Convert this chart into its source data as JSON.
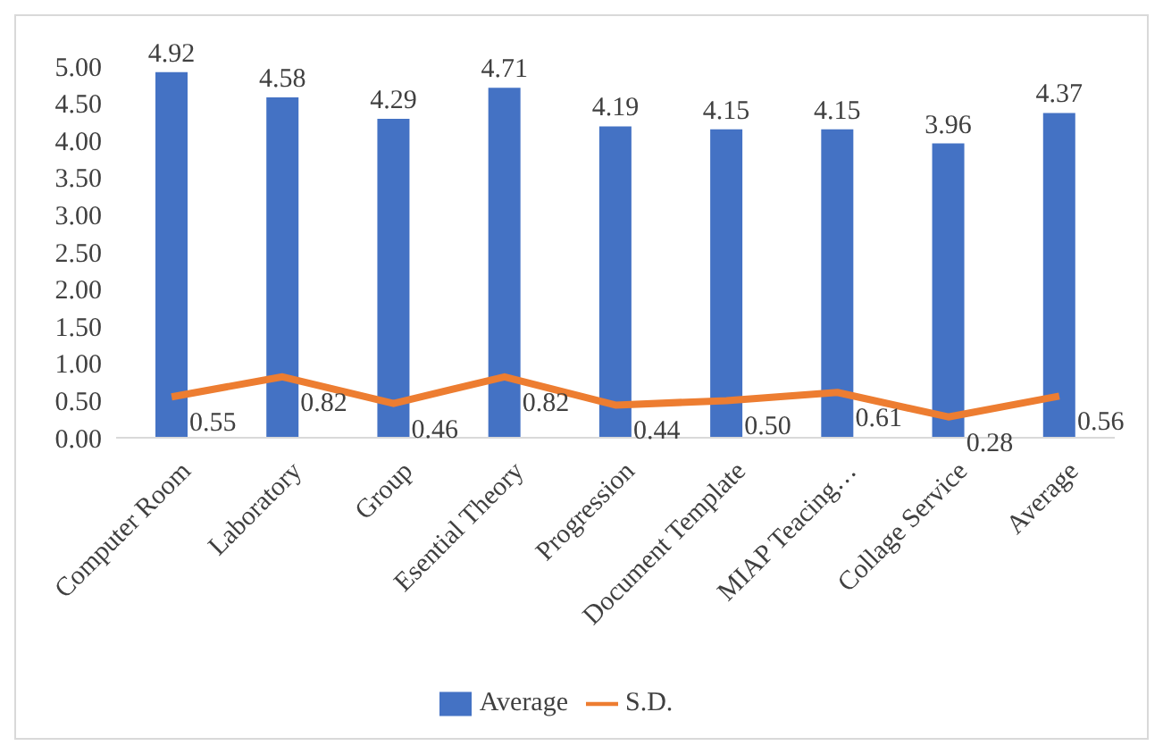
{
  "chart_data": {
    "type": "bar",
    "categories": [
      "Computer Room",
      "Laboratory",
      "Group",
      "Esential Theory",
      "Progression",
      "Document Template",
      "MIAP Teacing…",
      "Collage Service",
      "Average"
    ],
    "series": [
      {
        "name": "Average",
        "color": "#4472c4",
        "values": [
          4.92,
          4.58,
          4.29,
          4.71,
          4.19,
          4.15,
          4.15,
          3.96,
          4.37
        ],
        "value_labels": [
          "4.92",
          "4.58",
          "4.29",
          "4.71",
          "4.19",
          "4.15",
          "4.15",
          "3.96",
          "4.37"
        ]
      },
      {
        "name": "S.D.",
        "type": "line",
        "color": "#ed7d31",
        "marker": "none",
        "values": [
          0.55,
          0.82,
          0.46,
          0.82,
          0.44,
          0.5,
          0.61,
          0.28,
          0.56
        ],
        "value_labels": [
          "0.55",
          "0.82",
          "0.46",
          "0.82",
          "0.44",
          "0.50",
          "0.61",
          "0.28",
          "0.56"
        ]
      }
    ],
    "ylim": [
      0,
      5
    ],
    "yticks": [
      {
        "value": 0,
        "label": "0.00"
      },
      {
        "value": 0.5,
        "label": "0.50"
      },
      {
        "value": 1,
        "label": "1.00"
      },
      {
        "value": 1.5,
        "label": "1.50"
      },
      {
        "value": 2,
        "label": "2.00"
      },
      {
        "value": 2.5,
        "label": "2.50"
      },
      {
        "value": 3,
        "label": "3.00"
      },
      {
        "value": 3.5,
        "label": "3.50"
      },
      {
        "value": 4,
        "label": "4.00"
      },
      {
        "value": 4.5,
        "label": "4.50"
      },
      {
        "value": 5,
        "label": "5.00"
      }
    ],
    "grid": false,
    "legend": "bottom"
  }
}
